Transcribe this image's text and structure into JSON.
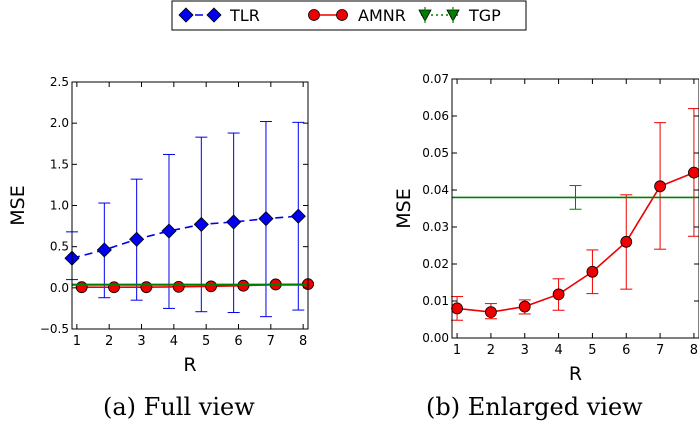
{
  "legend": {
    "items": [
      {
        "label": "TLR",
        "color": "#0000ee",
        "marker": "diamond",
        "line": "dashed"
      },
      {
        "label": "AMNR",
        "color": "#ee0000",
        "marker": "circle",
        "line": "solid"
      },
      {
        "label": "TGP",
        "color": "#008000",
        "marker": "triangle-down",
        "line": "dotted"
      }
    ]
  },
  "captions": {
    "a": "(a) Full view",
    "b": "(b) Enlarged view"
  },
  "chart_data": [
    {
      "type": "line",
      "xlabel": "R",
      "ylabel": "MSE",
      "xlim": [
        0.85,
        8.15
      ],
      "ylim": [
        -0.5,
        2.5
      ],
      "xticks": [
        1,
        2,
        3,
        4,
        5,
        6,
        7,
        8
      ],
      "yticks": [
        -0.5,
        0.0,
        0.5,
        1.0,
        1.5,
        2.0,
        2.5
      ],
      "ytick_labels": [
        "−0.5",
        "0.0",
        "0.5",
        "1.0",
        "1.5",
        "2.0",
        "2.5"
      ],
      "grid": false,
      "series": [
        {
          "name": "TLR",
          "color": "#0000ee",
          "marker": "diamond",
          "dash": "dashed",
          "x": [
            0.85,
            1.85,
            2.85,
            3.85,
            4.85,
            5.85,
            6.85,
            7.85
          ],
          "y": [
            0.36,
            0.46,
            0.59,
            0.69,
            0.77,
            0.8,
            0.84,
            0.87
          ],
          "yerr_low": [
            0.1,
            -0.12,
            -0.15,
            -0.25,
            -0.29,
            -0.3,
            -0.35,
            -0.27
          ],
          "yerr_high": [
            0.68,
            1.03,
            1.32,
            1.62,
            1.83,
            1.88,
            2.02,
            2.01
          ]
        },
        {
          "name": "AMNR",
          "color": "#ee0000",
          "marker": "circle",
          "dash": "solid",
          "x": [
            1.15,
            2.15,
            3.15,
            4.15,
            5.15,
            6.15,
            7.15,
            8.15
          ],
          "y": [
            0.008,
            0.007,
            0.008,
            0.012,
            0.018,
            0.026,
            0.041,
            0.045
          ],
          "yerr_low": [
            0.005,
            0.006,
            0.006,
            0.008,
            0.012,
            0.013,
            0.024,
            0.027
          ],
          "yerr_high": [
            0.011,
            0.009,
            0.01,
            0.016,
            0.024,
            0.039,
            0.058,
            0.062
          ]
        },
        {
          "name": "TGP",
          "color": "#008000",
          "marker": "triangle-down",
          "dash": "solid",
          "x": [
            0.85,
            8.15
          ],
          "y": [
            0.038,
            0.038
          ]
        }
      ]
    },
    {
      "type": "line",
      "xlabel": "R",
      "ylabel": "MSE",
      "xlim": [
        0.85,
        8.15
      ],
      "ylim": [
        0.0,
        0.07
      ],
      "xticks": [
        1,
        2,
        3,
        4,
        5,
        6,
        7,
        8
      ],
      "yticks": [
        0.0,
        0.01,
        0.02,
        0.03,
        0.04,
        0.05,
        0.06,
        0.07
      ],
      "ytick_labels": [
        "0.00",
        "0.01",
        "0.02",
        "0.03",
        "0.04",
        "0.05",
        "0.06",
        "0.07"
      ],
      "grid": false,
      "series": [
        {
          "name": "AMNR",
          "color": "#ee0000",
          "marker": "circle",
          "dash": "solid",
          "x": [
            1,
            2,
            3,
            4,
            5,
            6,
            7,
            8
          ],
          "y": [
            0.008,
            0.007,
            0.0085,
            0.0118,
            0.0179,
            0.026,
            0.041,
            0.0447
          ],
          "yerr_low": [
            0.0048,
            0.0052,
            0.0065,
            0.0075,
            0.012,
            0.0132,
            0.024,
            0.0275
          ],
          "yerr_high": [
            0.0112,
            0.0093,
            0.0103,
            0.016,
            0.0238,
            0.0387,
            0.0582,
            0.062
          ]
        },
        {
          "name": "TGP",
          "color": "#008000",
          "marker": "none",
          "dash": "solid",
          "x": [
            0.85,
            8.15
          ],
          "y": [
            0.038,
            0.038
          ],
          "errorbar": {
            "x": 4.5,
            "low": 0.0348,
            "high": 0.0412
          }
        }
      ]
    }
  ]
}
